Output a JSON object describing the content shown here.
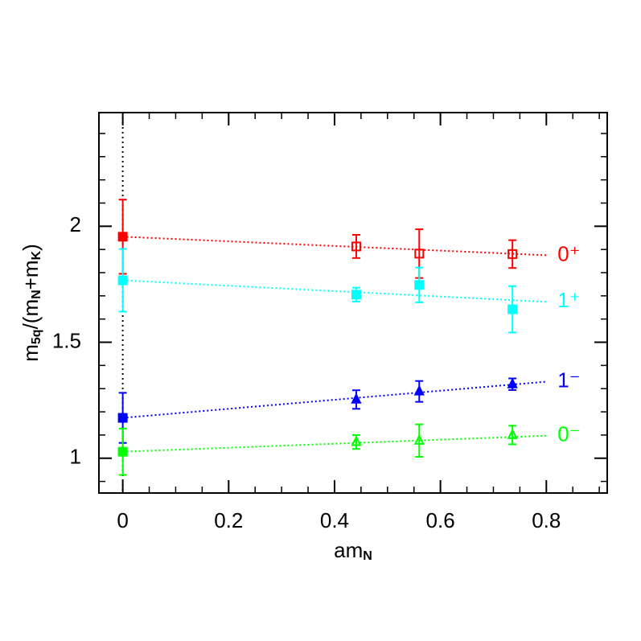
{
  "chart_data": {
    "type": "scatter",
    "xlabel_parts": [
      {
        "text": "am",
        "sub": false
      },
      {
        "text": "N",
        "sub": true
      }
    ],
    "ylabel_parts": [
      {
        "text": "m",
        "sub": false
      },
      {
        "text": "5q",
        "sub": true
      },
      {
        "text": "/(m",
        "sub": false
      },
      {
        "text": "N",
        "sub": true
      },
      {
        "text": "+m",
        "sub": false
      },
      {
        "text": "K",
        "sub": true
      },
      {
        "text": ")",
        "sub": false
      }
    ],
    "xlim": [
      -0.045,
      0.915
    ],
    "ylim": [
      0.85,
      2.49
    ],
    "xticks": [
      0,
      0.2,
      0.4,
      0.6,
      0.8
    ],
    "yticks": [
      1,
      1.5,
      2
    ],
    "xminor_step": 0.05,
    "yminor_step": 0.1,
    "vline": 0,
    "fit_x": [
      0,
      0.8
    ],
    "series": [
      {
        "name": "0⁺",
        "color": "#ff0000",
        "x": [
          0,
          0.441,
          0.56,
          0.736
        ],
        "values": [
          1.955,
          1.913,
          1.882,
          1.88
        ],
        "errors": [
          0.16,
          0.05,
          0.105,
          0.06
        ],
        "markers": [
          "filled-square",
          "open-square",
          "open-square",
          "open-square"
        ],
        "fit": [
          1.955,
          1.875
        ]
      },
      {
        "name": "1⁺",
        "color": "#00ffff",
        "x": [
          0,
          0.441,
          0.56,
          0.736
        ],
        "values": [
          1.767,
          1.705,
          1.747,
          1.642
        ],
        "errors": [
          0.135,
          0.03,
          0.075,
          0.1
        ],
        "markers": [
          "filled-square",
          "filled-square",
          "filled-square",
          "filled-square"
        ],
        "fit": [
          1.767,
          1.674
        ]
      },
      {
        "name": "1⁻",
        "color": "#0000ff",
        "x": [
          0,
          0.441,
          0.56,
          0.736
        ],
        "values": [
          1.174,
          1.253,
          1.288,
          1.319
        ],
        "errors": [
          0.108,
          0.04,
          0.045,
          0.025
        ],
        "markers": [
          "filled-square",
          "filled-triangle",
          "filled-triangle",
          "filled-triangle"
        ],
        "fit": [
          1.174,
          1.33
        ]
      },
      {
        "name": "0⁻",
        "color": "#00ff00",
        "x": [
          0,
          0.441,
          0.56,
          0.736
        ],
        "values": [
          1.028,
          1.07,
          1.076,
          1.1
        ],
        "errors": [
          0.1,
          0.03,
          0.07,
          0.04
        ],
        "markers": [
          "filled-square",
          "open-triangle",
          "open-triangle",
          "open-triangle"
        ],
        "fit": [
          1.028,
          1.097
        ]
      }
    ]
  }
}
